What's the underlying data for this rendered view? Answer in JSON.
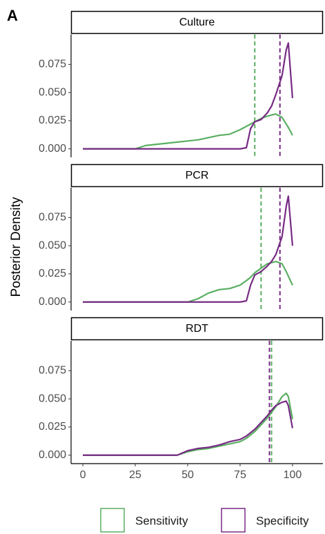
{
  "figure_label": "A",
  "y_axis_label": "Posterior Density",
  "chart_data": [
    {
      "type": "line",
      "title": "Culture",
      "x": [
        0,
        25,
        30,
        40,
        45,
        50,
        55,
        60,
        65,
        70,
        75,
        78,
        80,
        82,
        85,
        88,
        90,
        92,
        95,
        97,
        98,
        100
      ],
      "series": [
        {
          "name": "Sensitivity",
          "color": "#5aae61",
          "mean": 82,
          "values": [
            0,
            0,
            0.003,
            0.005,
            0.006,
            0.007,
            0.008,
            0.01,
            0.012,
            0.013,
            0.017,
            0.02,
            0.022,
            0.024,
            0.027,
            0.029,
            0.03,
            0.031,
            0.028,
            0.022,
            0.019,
            0.012
          ]
        },
        {
          "name": "Specificity",
          "color": "#762a83",
          "mean": 94,
          "values": [
            0,
            0,
            0,
            0,
            0,
            0,
            0,
            0,
            0,
            0,
            0,
            0.001,
            0.018,
            0.024,
            0.026,
            0.032,
            0.038,
            0.048,
            0.065,
            0.088,
            0.094,
            0.045
          ]
        }
      ],
      "xlim": [
        -5.6,
        114.5
      ],
      "ylim": [
        -0.0075,
        0.0985
      ],
      "yticks": [
        {
          "value": 0,
          "label": "0.000"
        },
        0.025,
        {
          "value": 0.05,
          "label": "0.050"
        },
        0.075
      ]
    },
    {
      "type": "line",
      "title": "PCR",
      "x": [
        0,
        25,
        30,
        40,
        45,
        50,
        55,
        60,
        65,
        70,
        75,
        78,
        80,
        82,
        85,
        88,
        90,
        92,
        95,
        97,
        98,
        100
      ],
      "series": [
        {
          "name": "Sensitivity",
          "color": "#5aae61",
          "mean": 85,
          "values": [
            0,
            0,
            0,
            0,
            0,
            0,
            0.003,
            0.008,
            0.011,
            0.012,
            0.015,
            0.019,
            0.022,
            0.026,
            0.03,
            0.034,
            0.035,
            0.036,
            0.034,
            0.027,
            0.023,
            0.015
          ]
        },
        {
          "name": "Specificity",
          "color": "#762a83",
          "mean": 94,
          "values": [
            0,
            0,
            0,
            0,
            0,
            0,
            0,
            0,
            0,
            0,
            0,
            0.001,
            0.015,
            0.024,
            0.027,
            0.032,
            0.036,
            0.042,
            0.058,
            0.085,
            0.094,
            0.05
          ]
        }
      ],
      "xlim": [
        -5.6,
        114.5
      ],
      "ylim": [
        -0.0075,
        0.0985
      ],
      "yticks": [
        {
          "value": 0,
          "label": "0.000"
        },
        0.025,
        {
          "value": 0.05,
          "label": "0.050"
        },
        0.075
      ]
    },
    {
      "type": "line",
      "title": "RDT",
      "x": [
        0,
        25,
        30,
        40,
        45,
        50,
        55,
        60,
        65,
        70,
        75,
        78,
        80,
        82,
        85,
        88,
        90,
        92,
        95,
        97,
        98,
        100
      ],
      "series": [
        {
          "name": "Sensitivity",
          "color": "#5aae61",
          "mean": 90,
          "values": [
            0,
            0,
            0,
            0,
            0,
            0.003,
            0.005,
            0.006,
            0.008,
            0.01,
            0.012,
            0.015,
            0.018,
            0.021,
            0.027,
            0.033,
            0.038,
            0.043,
            0.052,
            0.055,
            0.052,
            0.032
          ]
        },
        {
          "name": "Specificity",
          "color": "#762a83",
          "mean": 89,
          "values": [
            0,
            0,
            0,
            0,
            0,
            0.004,
            0.006,
            0.007,
            0.009,
            0.012,
            0.014,
            0.017,
            0.02,
            0.023,
            0.029,
            0.035,
            0.04,
            0.044,
            0.047,
            0.048,
            0.044,
            0.024
          ]
        }
      ],
      "xlim": [
        -5.6,
        114.5
      ],
      "ylim": [
        -0.0075,
        0.0985
      ],
      "yticks": [
        {
          "value": 0,
          "label": "0.000"
        },
        0.025,
        {
          "value": 0.05,
          "label": "0.050"
        },
        0.075
      ],
      "xticks": [
        0,
        25,
        50,
        75,
        100
      ]
    }
  ]
}
